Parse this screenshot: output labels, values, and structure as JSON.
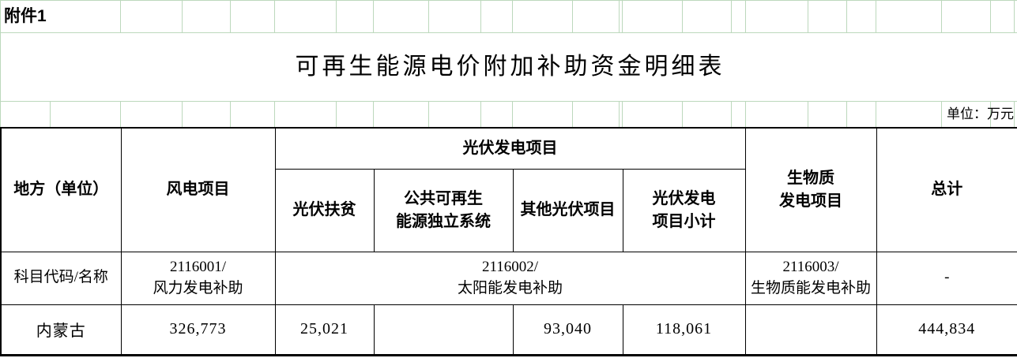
{
  "attachment_label": "附件1",
  "title": "可再生能源电价附加补助资金明细表",
  "unit_label": "单位：万元",
  "colors": {
    "gridline": "#bcd8bc",
    "table_border": "#000000",
    "text": "#000000",
    "background": "#ffffff"
  },
  "table": {
    "headers": {
      "region": "地方（单位）",
      "wind": "风电项目",
      "pv_group": "光伏发电项目",
      "pv_poverty": "光伏扶贫",
      "pv_public": "公共可再生\n能源独立系统",
      "pv_other": "其他光伏项目",
      "pv_subtotal": "光伏发电\n项目小计",
      "biomass": "生物质\n发电项目",
      "total": "总计"
    },
    "code_row": {
      "label": "科目代码/名称",
      "wind": "2116001/\n风力发电补助",
      "solar": "2116002/\n太阳能发电补助",
      "biomass": "2116003/\n生物质能发电补助",
      "total": "-"
    },
    "data_row": {
      "region": "内蒙古",
      "wind": "326,773",
      "pv_poverty": "25,021",
      "pv_public": "",
      "pv_other": "93,040",
      "pv_subtotal": "118,061",
      "biomass": "",
      "total": "444,834"
    }
  }
}
